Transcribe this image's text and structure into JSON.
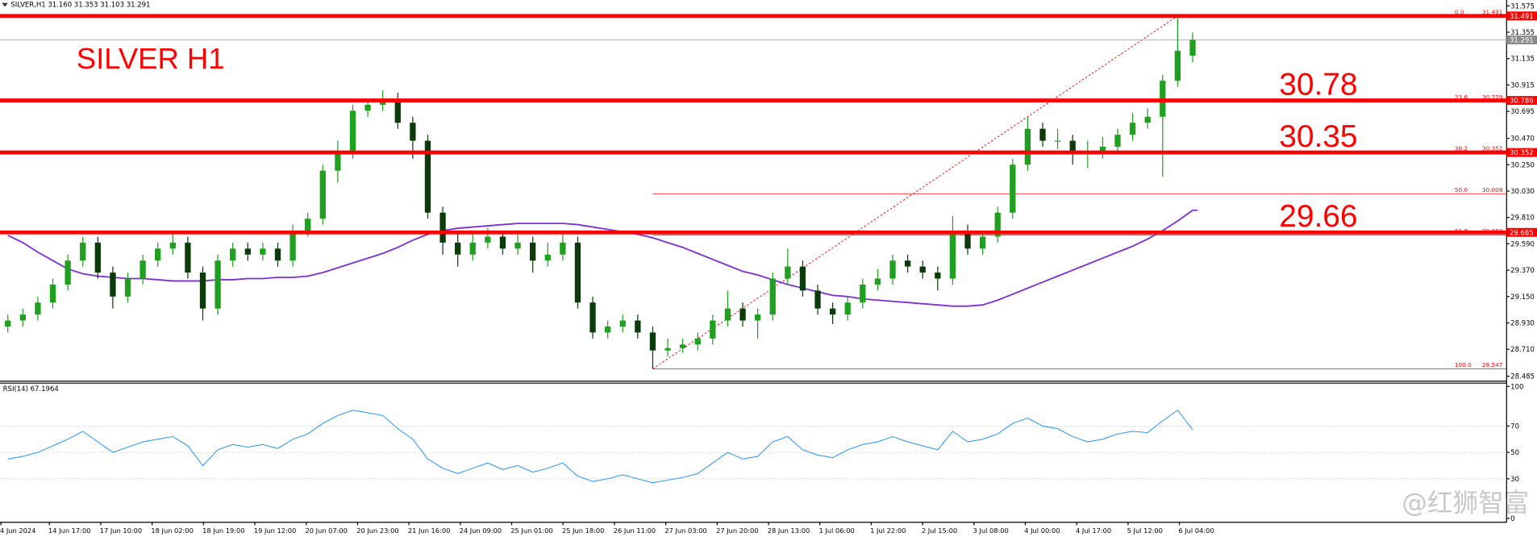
{
  "chart_data": {
    "type": "candlestick",
    "header": "SILVER,H1  31.160 31.353 31.103 31.291",
    "title": "SILVER H1",
    "ylim": [
      28.452,
      31.624
    ],
    "yticks": [
      31.575,
      31.355,
      31.135,
      30.915,
      30.695,
      {
        "value": 30.47,
        "label": "30.470"
      },
      {
        "value": 30.25,
        "label": "30.250"
      },
      {
        "value": 30.03,
        "label": "30.030"
      },
      {
        "value": 29.81,
        "label": "29.810"
      },
      {
        "value": 29.59,
        "label": "29.590"
      },
      {
        "value": 29.37,
        "label": "29.370"
      },
      {
        "value": 29.15,
        "label": "29.150"
      },
      {
        "value": 28.93,
        "label": "28.930"
      },
      {
        "value": 28.71,
        "label": "28.710"
      },
      28.485
    ],
    "x_labels": [
      "4 Jun 2024",
      "14 Jun 17:00",
      "17 Jun 10:00",
      "18 Jun 02:00",
      "18 Jun 19:00",
      "19 Jun 12:00",
      "20 Jun 07:00",
      "20 Jun 23:00",
      "21 Jun 16:00",
      "24 Jun 09:00",
      "25 Jun 01:00",
      "25 Jun 18:00",
      "26 Jun 11:00",
      "27 Jun 03:00",
      "27 Jun 20:00",
      "28 Jun 13:00",
      "1 Jul 06:00",
      "1 Jul 22:00",
      "2 Jul 15:00",
      "3 Jul 08:00",
      "4 Jul 00:00",
      "4 Jul 17:00",
      "5 Jul 12:00",
      "6 Jul 04:00"
    ],
    "up_color": "#1fa01f",
    "down_color": "#0b3b0b",
    "candles": {
      "open": [
        28.9,
        28.95,
        29.0,
        29.1,
        29.25,
        29.45,
        29.6,
        29.35,
        29.15,
        29.3,
        29.45,
        29.55,
        29.6,
        29.35,
        29.05,
        29.45,
        29.55,
        29.5,
        29.55,
        29.45,
        29.7,
        29.8,
        30.2,
        30.35,
        30.7,
        30.75,
        30.8,
        30.6,
        30.45,
        29.85,
        29.6,
        29.5,
        29.6,
        29.65,
        29.55,
        29.6,
        29.45,
        29.5,
        29.6,
        29.1,
        28.85,
        28.9,
        28.95,
        28.85,
        28.7,
        28.72,
        28.75,
        28.8,
        28.95,
        29.05,
        28.95,
        29.0,
        29.3,
        29.4,
        29.2,
        29.05,
        29.0,
        29.1,
        29.25,
        29.3,
        29.45,
        29.4,
        29.35,
        29.3,
        29.7,
        29.55,
        29.65,
        29.85,
        30.25,
        30.55,
        30.45,
        30.45,
        30.35,
        30.35,
        30.4,
        30.5,
        30.6,
        30.65,
        30.95,
        31.16
      ],
      "high": [
        29.0,
        29.05,
        29.15,
        29.3,
        29.5,
        29.65,
        29.65,
        29.4,
        29.35,
        29.5,
        29.6,
        29.7,
        29.65,
        29.4,
        29.5,
        29.6,
        29.6,
        29.6,
        29.6,
        29.75,
        29.85,
        30.25,
        30.45,
        30.75,
        30.8,
        30.87,
        30.85,
        30.65,
        30.5,
        29.9,
        29.7,
        29.7,
        29.72,
        29.7,
        29.7,
        29.65,
        29.6,
        29.68,
        29.65,
        29.15,
        28.95,
        29.0,
        29.0,
        28.9,
        28.8,
        28.8,
        28.85,
        29.0,
        29.2,
        29.1,
        29.05,
        29.35,
        29.55,
        29.45,
        29.25,
        29.1,
        29.15,
        29.3,
        29.38,
        29.5,
        29.5,
        29.45,
        29.4,
        29.82,
        29.75,
        29.7,
        29.9,
        30.3,
        30.65,
        30.6,
        30.55,
        30.5,
        30.45,
        30.48,
        30.55,
        30.68,
        30.72,
        31.0,
        31.491,
        31.353
      ],
      "low": [
        28.85,
        28.9,
        28.95,
        29.05,
        29.2,
        29.4,
        29.3,
        29.05,
        29.1,
        29.25,
        29.4,
        29.5,
        29.3,
        28.95,
        29.0,
        29.4,
        29.45,
        29.45,
        29.4,
        29.4,
        29.65,
        29.75,
        30.1,
        30.3,
        30.65,
        30.7,
        30.55,
        30.3,
        29.8,
        29.5,
        29.4,
        29.45,
        29.55,
        29.5,
        29.5,
        29.35,
        29.4,
        29.45,
        29.05,
        28.8,
        28.8,
        28.85,
        28.8,
        28.547,
        28.65,
        28.68,
        28.7,
        28.75,
        28.9,
        28.9,
        28.8,
        28.95,
        29.25,
        29.15,
        29.0,
        28.92,
        28.95,
        29.05,
        29.2,
        29.25,
        29.35,
        29.3,
        29.2,
        29.25,
        29.5,
        29.5,
        29.6,
        29.8,
        30.2,
        30.4,
        30.38,
        30.25,
        30.22,
        30.3,
        30.35,
        30.45,
        30.55,
        30.15,
        30.9,
        31.103
      ],
      "close": [
        28.95,
        29.0,
        29.1,
        29.25,
        29.45,
        29.6,
        29.35,
        29.15,
        29.3,
        29.45,
        29.55,
        29.6,
        29.35,
        29.05,
        29.45,
        29.55,
        29.5,
        29.55,
        29.45,
        29.7,
        29.8,
        30.2,
        30.35,
        30.7,
        30.75,
        30.8,
        30.6,
        30.45,
        29.85,
        29.6,
        29.5,
        29.6,
        29.65,
        29.55,
        29.6,
        29.45,
        29.5,
        29.6,
        29.1,
        28.85,
        28.9,
        28.95,
        28.85,
        28.7,
        28.72,
        28.75,
        28.8,
        28.95,
        29.05,
        28.95,
        29.0,
        29.3,
        29.4,
        29.2,
        29.05,
        29.0,
        29.1,
        29.25,
        29.3,
        29.45,
        29.4,
        29.35,
        29.3,
        29.7,
        29.55,
        29.65,
        29.85,
        30.25,
        30.55,
        30.45,
        30.45,
        30.35,
        30.35,
        30.4,
        30.5,
        30.6,
        30.65,
        30.95,
        31.2,
        31.291
      ]
    },
    "ma": {
      "color": "#7b2fd6",
      "values": [
        29.66,
        29.6,
        29.52,
        29.45,
        29.38,
        29.34,
        29.32,
        29.31,
        29.3,
        29.3,
        29.29,
        29.28,
        29.28,
        29.28,
        29.29,
        29.29,
        29.3,
        29.3,
        29.31,
        29.31,
        29.32,
        29.35,
        29.39,
        29.43,
        29.47,
        29.51,
        29.56,
        29.62,
        29.67,
        29.7,
        29.72,
        29.73,
        29.74,
        29.75,
        29.76,
        29.76,
        29.76,
        29.76,
        29.75,
        29.73,
        29.71,
        29.69,
        29.67,
        29.64,
        29.6,
        29.56,
        29.51,
        29.46,
        29.41,
        29.36,
        29.33,
        29.29,
        29.25,
        29.22,
        29.19,
        29.16,
        29.15,
        29.13,
        29.12,
        29.11,
        29.1,
        29.09,
        29.08,
        29.07,
        29.07,
        29.08,
        29.12,
        29.17,
        29.22,
        29.27,
        29.32,
        29.37,
        29.42,
        29.47,
        29.52,
        29.57,
        29.63,
        29.7,
        29.78,
        29.87
      ]
    },
    "levels": {
      "color": "#ff0000",
      "values": [
        31.491,
        30.786,
        30.352,
        29.685
      ]
    },
    "annotations": [
      "30.78",
      "30.35",
      "29.66"
    ],
    "bid": 31.291,
    "fib": {
      "levels": [
        {
          "label": "0.0",
          "value": 31.491
        },
        {
          "label": "23.6",
          "value": 30.779
        },
        {
          "label": "38.2",
          "value": 30.352
        },
        {
          "label": "50.0",
          "value": 30.008
        },
        {
          "label": "61.8",
          "value": 29.663
        },
        {
          "label": "100.0",
          "value": 28.547
        }
      ]
    },
    "rsi": {
      "label": "RSI(14) 67.1964",
      "color": "#1e90ff",
      "ylim": [
        -3,
        104
      ],
      "yticks": [
        100,
        70,
        50,
        30,
        0
      ],
      "levels": [
        70,
        50,
        30
      ],
      "values": [
        45,
        47,
        50,
        55,
        60,
        66,
        58,
        50,
        54,
        58,
        60,
        62,
        55,
        40,
        52,
        56,
        54,
        56,
        53,
        60,
        64,
        72,
        78,
        82,
        80,
        78,
        68,
        60,
        45,
        38,
        34,
        38,
        42,
        37,
        40,
        35,
        38,
        42,
        32,
        28,
        30,
        33,
        30,
        27,
        29,
        31,
        34,
        42,
        50,
        45,
        47,
        58,
        62,
        52,
        48,
        46,
        52,
        56,
        58,
        62,
        58,
        55,
        52,
        66,
        58,
        60,
        64,
        72,
        76,
        70,
        68,
        62,
        58,
        60,
        64,
        66,
        65,
        74,
        82,
        67.1964
      ]
    },
    "watermark": "@红狮智富"
  }
}
